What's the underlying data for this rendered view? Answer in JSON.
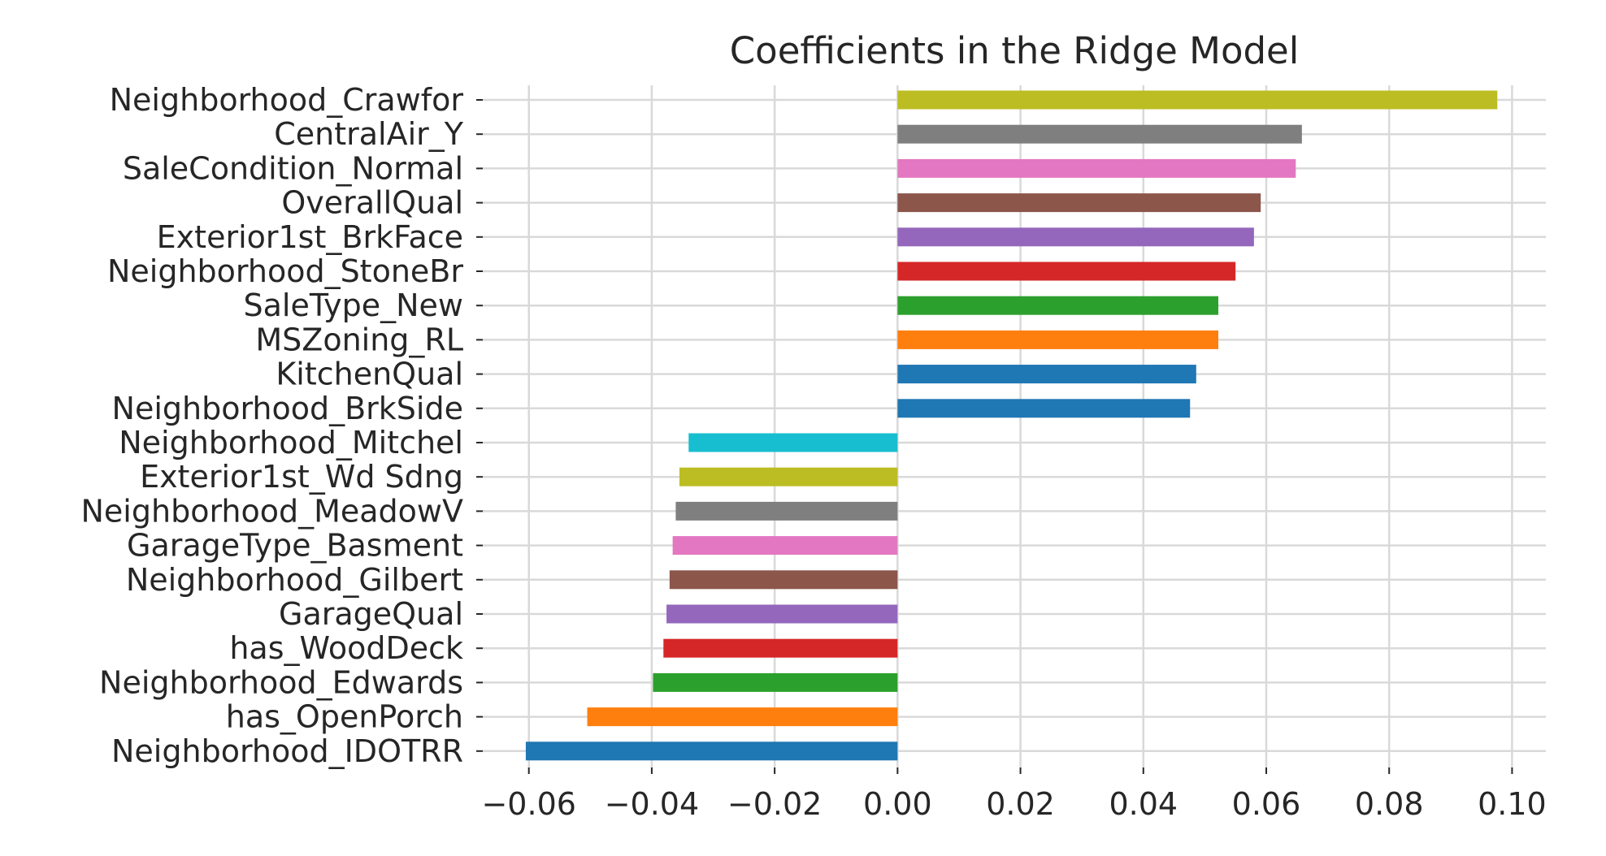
{
  "chart_data": {
    "type": "bar",
    "orientation": "horizontal",
    "title": "Coefficients in the Ridge Model",
    "xlabel": "",
    "ylabel": "",
    "xlim": [
      -0.0675,
      0.1055
    ],
    "x_ticks": [
      -0.06,
      -0.04,
      -0.02,
      0.0,
      0.02,
      0.04,
      0.06,
      0.08,
      0.1
    ],
    "x_tick_labels": [
      "−0.06",
      "−0.04",
      "−0.02",
      "0.00",
      "0.02",
      "0.04",
      "0.06",
      "0.08",
      "0.10"
    ],
    "grid": true,
    "categories": [
      "Neighborhood_IDOTRR",
      "has_OpenPorch",
      "Neighborhood_Edwards",
      "has_WoodDeck",
      "GarageQual",
      "Neighborhood_Gilbert",
      "GarageType_Basment",
      "Neighborhood_MeadowV",
      "Exterior1st_Wd Sdng",
      "Neighborhood_Mitchel",
      "Neighborhood_BrkSide",
      "KitchenQual",
      "MSZoning_RL",
      "SaleType_New",
      "Neighborhood_StoneBr",
      "Exterior1st_BrkFace",
      "OverallQual",
      "SaleCondition_Normal",
      "CentralAir_Y",
      "Neighborhood_Crawfor"
    ],
    "values": [
      -0.0605,
      -0.0505,
      -0.0398,
      -0.0381,
      -0.0376,
      -0.0371,
      -0.0366,
      -0.0361,
      -0.0355,
      -0.034,
      0.0476,
      0.0486,
      0.0522,
      0.0522,
      0.055,
      0.058,
      0.0591,
      0.0648,
      0.0658,
      0.0976
    ],
    "colors": [
      "#1f77b4",
      "#ff7f0e",
      "#2ca02c",
      "#d62728",
      "#9467bd",
      "#8c564b",
      "#e377c2",
      "#7f7f7f",
      "#bcbd22",
      "#17becf",
      "#1f77b4",
      "#1f77b4",
      "#ff7f0e",
      "#2ca02c",
      "#d62728",
      "#9467bd",
      "#8c564b",
      "#e377c2",
      "#7f7f7f",
      "#bcbd22"
    ]
  }
}
